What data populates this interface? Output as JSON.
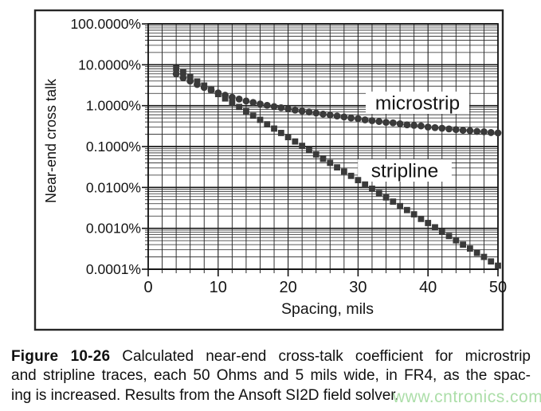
{
  "figure": {
    "caption_label": "Figure 10-26",
    "caption_line1": "Calculated near-end cross-talk coefficient for microstrip",
    "caption_line2": "and stripline traces, each 50 Ohms and 5 mils wide, in FR4, as the spac-",
    "caption_line3": "ing is increased. Results from the Ansoft SI2D field solver.",
    "watermark": {
      "text": "www.cntronics.com",
      "color": "#a4dba0"
    }
  },
  "chart_data": {
    "type": "scatter",
    "title": "",
    "xlabel": "Spacing, mils",
    "ylabel": "Near-end cross talk",
    "y_scale": "log",
    "xlim": [
      0,
      50
    ],
    "ylim_percent": [
      0.0001,
      100
    ],
    "x_ticks": [
      0,
      10,
      20,
      30,
      40,
      50
    ],
    "x_minor_grid_step_mils": 2,
    "y_tick_labels": [
      "100.0000%",
      "10.0000%",
      "1.0000%",
      "0.1000%",
      "0.0100%",
      "0.0010%",
      "0.0001%"
    ],
    "grid": "full log grid, vertical lines every 2 mils",
    "legend_position": "inline annotations on plot",
    "marker_color": "#3a3a3a",
    "x": [
      4,
      5,
      6,
      7,
      8,
      9,
      10,
      11,
      12,
      13,
      14,
      15,
      16,
      17,
      18,
      19,
      20,
      21,
      22,
      23,
      24,
      25,
      26,
      27,
      28,
      29,
      30,
      31,
      32,
      33,
      34,
      35,
      36,
      37,
      38,
      39,
      40,
      41,
      42,
      43,
      44,
      45,
      46,
      47,
      48,
      49,
      50
    ],
    "series": [
      {
        "name": "microstrip",
        "marker": "circle",
        "label_annotation": "microstrip",
        "values_percent": [
          6.0,
          4.8,
          4.0,
          3.3,
          2.8,
          2.4,
          2.05,
          1.8,
          1.6,
          1.45,
          1.3,
          1.2,
          1.1,
          1.02,
          0.95,
          0.89,
          0.83,
          0.78,
          0.74,
          0.7,
          0.66,
          0.62,
          0.59,
          0.56,
          0.53,
          0.5,
          0.48,
          0.45,
          0.43,
          0.41,
          0.39,
          0.38,
          0.36,
          0.34,
          0.33,
          0.32,
          0.3,
          0.29,
          0.28,
          0.27,
          0.26,
          0.25,
          0.245,
          0.235,
          0.23,
          0.22,
          0.215
        ]
      },
      {
        "name": "stripline",
        "marker": "square",
        "label_annotation": "stripline",
        "values_percent": [
          8.2,
          6.5,
          5.0,
          3.9,
          3.1,
          2.45,
          1.92,
          1.5,
          1.18,
          0.93,
          0.73,
          0.57,
          0.45,
          0.35,
          0.275,
          0.215,
          0.17,
          0.133,
          0.104,
          0.082,
          0.064,
          0.05,
          0.04,
          0.031,
          0.0245,
          0.0192,
          0.0151,
          0.0118,
          0.0093,
          0.0073,
          0.0057,
          0.0045,
          0.0035,
          0.0028,
          0.0022,
          0.0017,
          0.00135,
          0.00106,
          0.00083,
          0.00065,
          0.00051,
          0.0004,
          0.00032,
          0.00025,
          0.0002,
          0.000155,
          0.000122
        ]
      }
    ]
  }
}
